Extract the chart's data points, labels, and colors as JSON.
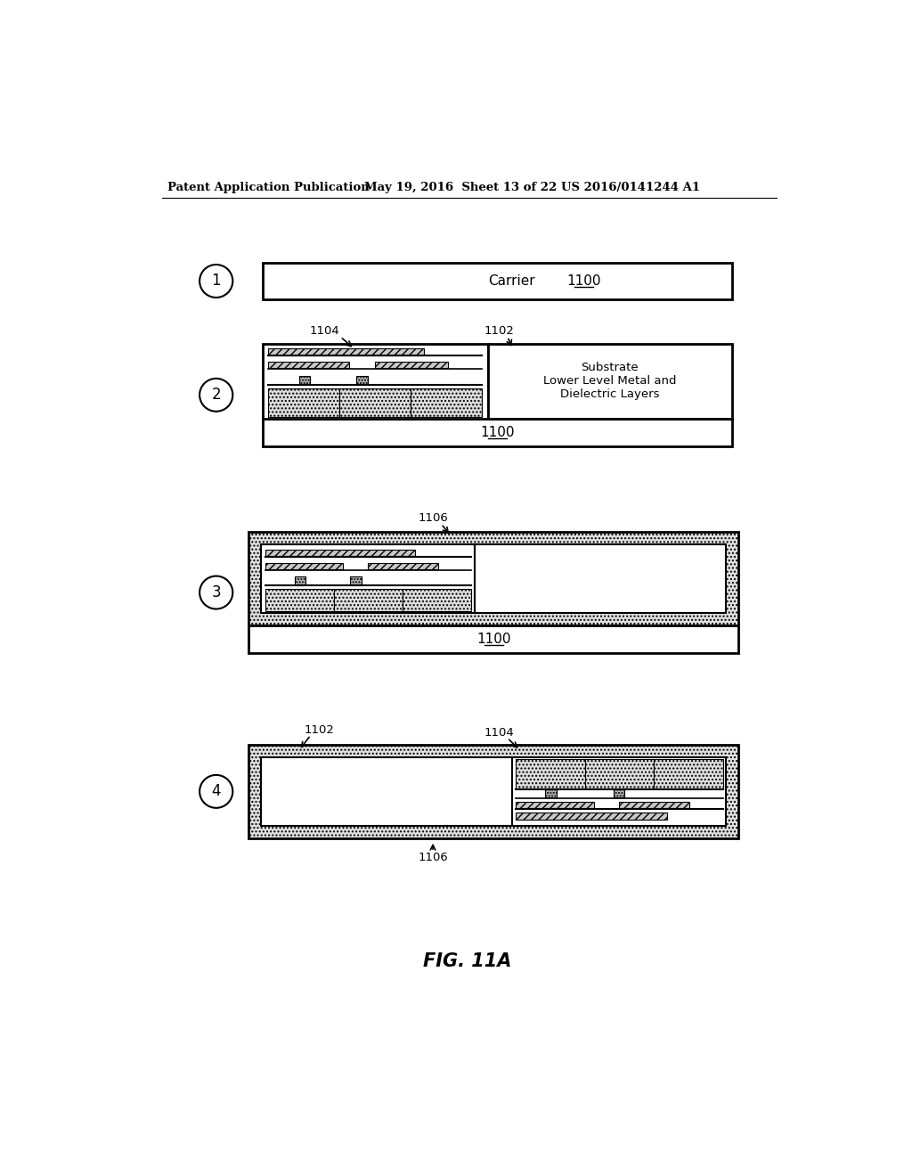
{
  "header_left": "Patent Application Publication",
  "header_mid": "May 19, 2016  Sheet 13 of 22",
  "header_right": "US 2016/0141244 A1",
  "fig_label": "FIG. 11A",
  "bg_color": "#ffffff",
  "step1": {
    "circle": "1",
    "text": "Carrier",
    "ref": "1100"
  },
  "step2": {
    "circle": "2",
    "ref_left": "1104",
    "ref_right": "1102",
    "substrate_text": "Substrate\nLower Level Metal and\nDielectric Layers",
    "ref_bottom": "1100"
  },
  "step3": {
    "circle": "3",
    "ref_top": "1106",
    "ref_bottom": "1100"
  },
  "step4": {
    "circle": "4",
    "ref_left": "1102",
    "ref_right": "1104",
    "ref_bottom": "1106"
  }
}
